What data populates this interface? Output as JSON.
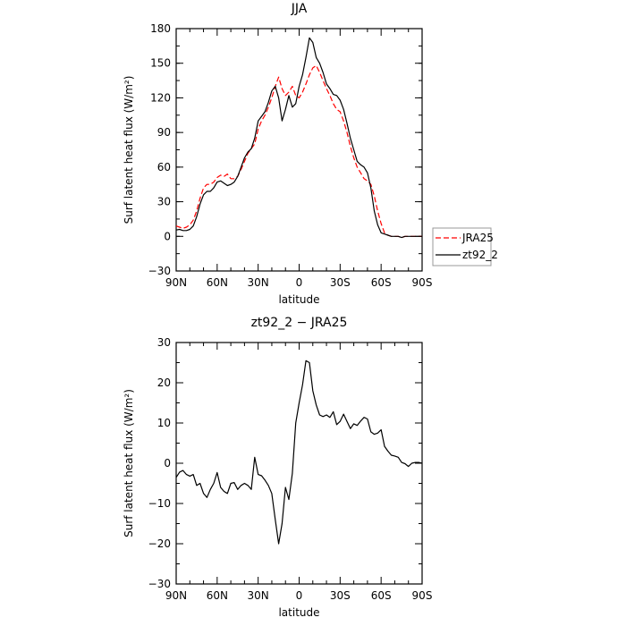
{
  "chart_data": [
    {
      "type": "line",
      "title": "JJA",
      "xlabel": "latitude",
      "ylabel": "Surf latent heat flux (W/m²)",
      "x": [
        90,
        87.5,
        85,
        82.5,
        80,
        77.5,
        75,
        72.5,
        70,
        67.5,
        65,
        62.5,
        60,
        57.5,
        55,
        52.5,
        50,
        47.5,
        45,
        42.5,
        40,
        37.5,
        35,
        32.5,
        30,
        27.5,
        25,
        22.5,
        20,
        17.5,
        15,
        12.5,
        10,
        7.5,
        5,
        2.5,
        0,
        -2.5,
        -5,
        -7.5,
        -10,
        -12.5,
        -15,
        -17.5,
        -20,
        -22.5,
        -25,
        -27.5,
        -30,
        -32.5,
        -35,
        -37.5,
        -40,
        -42.5,
        -45,
        -47.5,
        -50,
        -52.5,
        -55,
        -57.5,
        -60,
        -62.5,
        -65,
        -67.5,
        -70,
        -72.5,
        -75,
        -77.5,
        -80,
        -82.5,
        -85,
        -87.5,
        -90
      ],
      "x_ticks": [
        "90N",
        "60N",
        "30N",
        "0",
        "30S",
        "60S",
        "90S"
      ],
      "x_tick_values": [
        90,
        60,
        30,
        0,
        -30,
        -60,
        -90
      ],
      "ylim": [
        -30,
        180
      ],
      "y_ticks": [
        "−30",
        "0",
        "30",
        "60",
        "90",
        "120",
        "150",
        "180"
      ],
      "y_tick_values": [
        -30,
        0,
        30,
        60,
        90,
        120,
        150,
        180
      ],
      "legend": "outside-right",
      "series": [
        {
          "name": "JRA25",
          "color": "#ff0000",
          "dash": "dashed",
          "values": [
            9,
            8,
            7,
            8,
            10,
            14,
            22,
            33,
            42,
            45,
            45,
            47,
            51,
            53,
            52,
            54,
            50,
            50,
            52,
            58,
            65,
            72,
            76,
            80,
            93,
            100,
            105,
            112,
            120,
            130,
            138,
            128,
            122,
            125,
            130,
            122,
            120,
            125,
            132,
            140,
            146,
            148,
            142,
            135,
            128,
            122,
            115,
            110,
            108,
            100,
            90,
            78,
            68,
            60,
            55,
            50,
            48,
            45,
            35,
            22,
            11,
            3,
            1,
            0,
            0,
            0,
            -1,
            0,
            0,
            0,
            0,
            0,
            0
          ]
        },
        {
          "name": "zt92_2",
          "color": "#000000",
          "dash": "solid",
          "values": [
            5.5,
            6,
            5,
            5,
            6,
            9,
            17,
            28,
            36,
            39,
            39,
            42,
            47,
            48,
            46,
            44,
            45,
            47,
            52,
            60,
            68,
            73,
            76,
            85,
            100,
            104,
            108,
            116,
            126,
            130,
            120,
            100,
            110,
            122,
            112,
            115,
            130,
            140,
            155,
            172,
            168,
            155,
            150,
            142,
            132,
            128,
            123,
            122,
            118,
            110,
            98,
            85,
            75,
            65,
            62,
            60,
            55,
            42,
            22,
            10,
            3,
            2,
            1,
            0,
            0,
            0,
            -1,
            0,
            0,
            0,
            0,
            0,
            0
          ]
        }
      ]
    },
    {
      "type": "line",
      "title": "zt92_2 − JRA25",
      "xlabel": "latitude",
      "ylabel": "Surf latent heat flux (W/m²)",
      "x": [
        90,
        87.5,
        85,
        82.5,
        80,
        77.5,
        75,
        72.5,
        70,
        67.5,
        65,
        62.5,
        60,
        57.5,
        55,
        52.5,
        50,
        47.5,
        45,
        42.5,
        40,
        37.5,
        35,
        32.5,
        30,
        27.5,
        25,
        22.5,
        20,
        17.5,
        15,
        12.5,
        10,
        7.5,
        5,
        2.5,
        0,
        -2.5,
        -5,
        -7.5,
        -10,
        -12.5,
        -15,
        -17.5,
        -20,
        -22.5,
        -25,
        -27.5,
        -30,
        -32.5,
        -35,
        -37.5,
        -40,
        -42.5,
        -45,
        -47.5,
        -50,
        -52.5,
        -55,
        -57.5,
        -60,
        -62.5,
        -65,
        -67.5,
        -70,
        -72.5,
        -75,
        -77.5,
        -80,
        -82.5,
        -85,
        -87.5,
        -90
      ],
      "x_ticks": [
        "90N",
        "60N",
        "30N",
        "0",
        "30S",
        "60S",
        "90S"
      ],
      "x_tick_values": [
        90,
        60,
        30,
        0,
        -30,
        -60,
        -90
      ],
      "ylim": [
        -30,
        30
      ],
      "y_ticks": [
        "−30",
        "−20",
        "−10",
        "0",
        "10",
        "20",
        "30"
      ],
      "y_tick_values": [
        -30,
        -20,
        -10,
        0,
        10,
        20,
        30
      ],
      "series": [
        {
          "name": "zt92_2 − JRA25",
          "color": "#000000",
          "dash": "solid",
          "values": [
            -3.5,
            -2.2,
            -1.8,
            -2.8,
            -3.2,
            -2.8,
            -5.5,
            -5,
            -7.5,
            -8.5,
            -6.5,
            -5,
            -2.3,
            -6,
            -7,
            -7.5,
            -5,
            -4.8,
            -6.5,
            -5.5,
            -5,
            -5.5,
            -6.5,
            1.5,
            -2.8,
            -3.1,
            -4.2,
            -5.5,
            -7.5,
            -14,
            -20,
            -15,
            -6,
            -9,
            -2.5,
            10,
            15,
            19.5,
            25.5,
            25,
            18,
            14.5,
            12,
            11.6,
            12,
            11.4,
            12.8,
            9.6,
            10.4,
            12.2,
            10.4,
            8.6,
            9.8,
            9.4,
            10.5,
            11.4,
            11,
            7.8,
            7.2,
            7.5,
            8.3,
            4.2,
            3,
            2,
            1.8,
            1.5,
            0.2,
            -0.1,
            -0.8,
            0,
            0.2,
            0.2,
            0
          ]
        }
      ]
    }
  ]
}
